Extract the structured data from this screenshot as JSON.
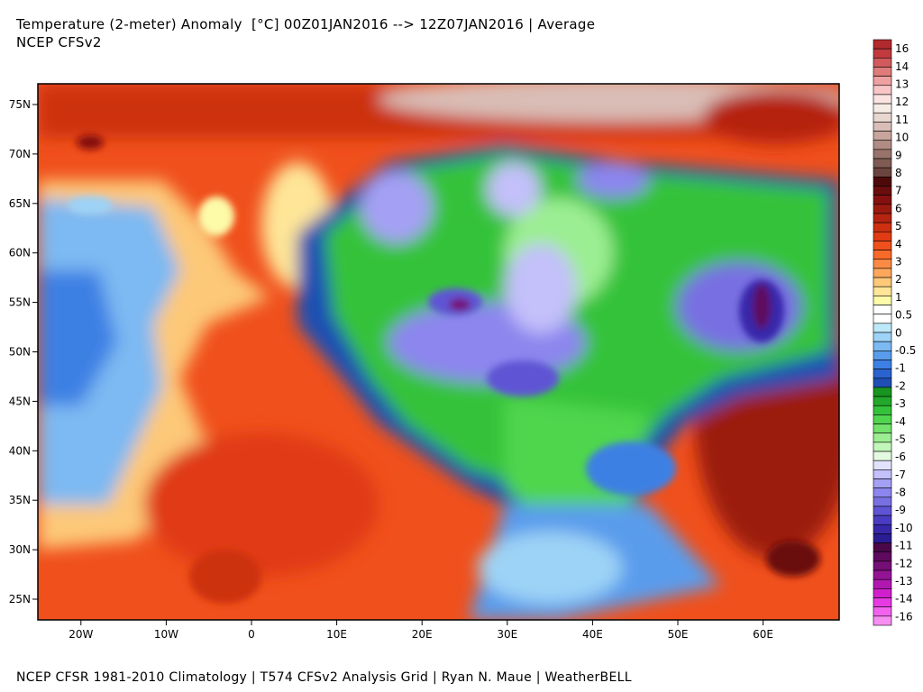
{
  "title": "Temperature (2-meter) Anomaly  [°C] 00Z01JAN2016 --> 12Z07JAN2016 | Average",
  "subtitle": "NCEP CFSv2",
  "footer": "NCEP CFSR 1981-2010 Climatology | T574 CFSv2 Analysis Grid | Ryan N. Maue | WeatherBELL",
  "map": {
    "lat_labels": [
      "75N",
      "70N",
      "65N",
      "60N",
      "55N",
      "50N",
      "45N",
      "40N",
      "35N",
      "30N",
      "25N"
    ],
    "lat_values": [
      75,
      70,
      65,
      60,
      55,
      50,
      45,
      40,
      35,
      30,
      25
    ],
    "lon_labels": [
      "20W",
      "10W",
      "0",
      "10E",
      "20E",
      "30E",
      "40E",
      "50E",
      "60E"
    ],
    "lon_values": [
      -20,
      -10,
      0,
      10,
      20,
      30,
      40,
      50,
      60
    ]
  },
  "colorbar": {
    "labels": [
      "16",
      "14",
      "13",
      "12",
      "11",
      "10",
      "9",
      "8",
      "7",
      "6",
      "5",
      "4",
      "3",
      "2",
      "1",
      "0.5",
      "0",
      "-0.5",
      "-1",
      "-2",
      "-3",
      "-4",
      "-5",
      "-6",
      "-7",
      "-8",
      "-9",
      "-10",
      "-11",
      "-12",
      "-13",
      "-14",
      "-16"
    ],
    "colors": [
      "#b22a2e",
      "#c03a3e",
      "#d05a5c",
      "#e07b7b",
      "#eea1a1",
      "#f8c6c6",
      "#fbe3e2",
      "#f6ece6",
      "#e8d6d0",
      "#d9bdb6",
      "#c7a49c",
      "#b08c84",
      "#98736b",
      "#7f5b54",
      "#6a443e",
      "#4e0a0a",
      "#6a0d0d",
      "#851010",
      "#9b1a10",
      "#b52410",
      "#cc3010",
      "#e03b14",
      "#f0501c",
      "#f76a2a",
      "#fa8a44",
      "#fca75c",
      "#fdc878",
      "#fee597",
      "#fdfaa8",
      "#ffffff",
      "#ffffff",
      "#bde8f8",
      "#9dd3f6",
      "#7db9f2",
      "#5a9cec",
      "#3c80e4",
      "#2a63cf",
      "#1f4fb3",
      "#189520",
      "#22a82a",
      "#34c23a",
      "#4fd64e",
      "#72e26b",
      "#9bee92",
      "#c2f6ba",
      "#e4fae0",
      "#e2e2fc",
      "#c3c0fa",
      "#a4a0f4",
      "#8c86ee",
      "#7870e2",
      "#5f54d4",
      "#4a3cc2",
      "#3728aa",
      "#2a1c92",
      "#4a0848",
      "#5e0a5e",
      "#760e78",
      "#921494",
      "#b018b0",
      "#d020cc",
      "#e63ae2",
      "#f262ee",
      "#f78ef2"
    ]
  }
}
